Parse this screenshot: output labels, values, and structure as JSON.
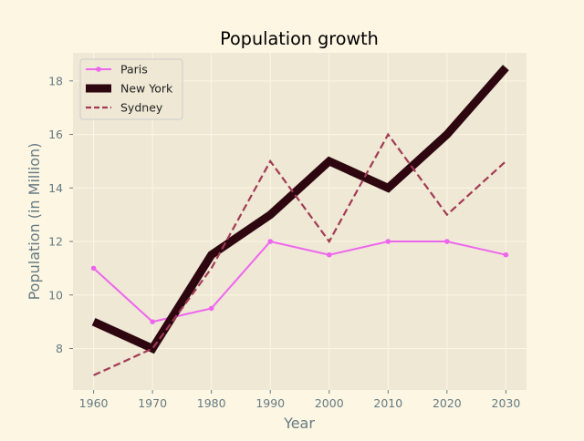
{
  "chart_data": {
    "type": "line",
    "title": "Population growth",
    "xlabel": "Year",
    "ylabel": "Population (in Million)",
    "x": [
      1960,
      1970,
      1980,
      1990,
      2000,
      2010,
      2020,
      2030
    ],
    "xticks": [
      "1960",
      "1970",
      "1980",
      "1990",
      "2000",
      "2010",
      "2020",
      "2030"
    ],
    "yticks": [
      "8",
      "10",
      "12",
      "14",
      "16",
      "18"
    ],
    "xlim": [
      1956.5,
      2033.5
    ],
    "ylim": [
      6.45,
      19.05
    ],
    "grid": true,
    "legend_position": "top-left",
    "series": [
      {
        "name": "Paris",
        "values": [
          11,
          9,
          9.5,
          12,
          11.5,
          12,
          12,
          11.5
        ],
        "color": "#ee66ee",
        "style": "solid-dots"
      },
      {
        "name": "New York",
        "values": [
          9,
          8,
          11.5,
          13,
          15,
          14,
          16,
          18.5
        ],
        "color": "#2d0610",
        "style": "thick"
      },
      {
        "name": "Sydney",
        "values": [
          7,
          8,
          11,
          15,
          12,
          16,
          13,
          15
        ],
        "color": "#a23a55",
        "style": "dashed"
      }
    ],
    "colors": {
      "figure_bg": "#fdf6e3",
      "axes_bg": "#eee8d5",
      "grid": "#fdf6e3",
      "tick_text": "#657b83",
      "label_text": "#657b83",
      "title_text": "#000000"
    }
  }
}
